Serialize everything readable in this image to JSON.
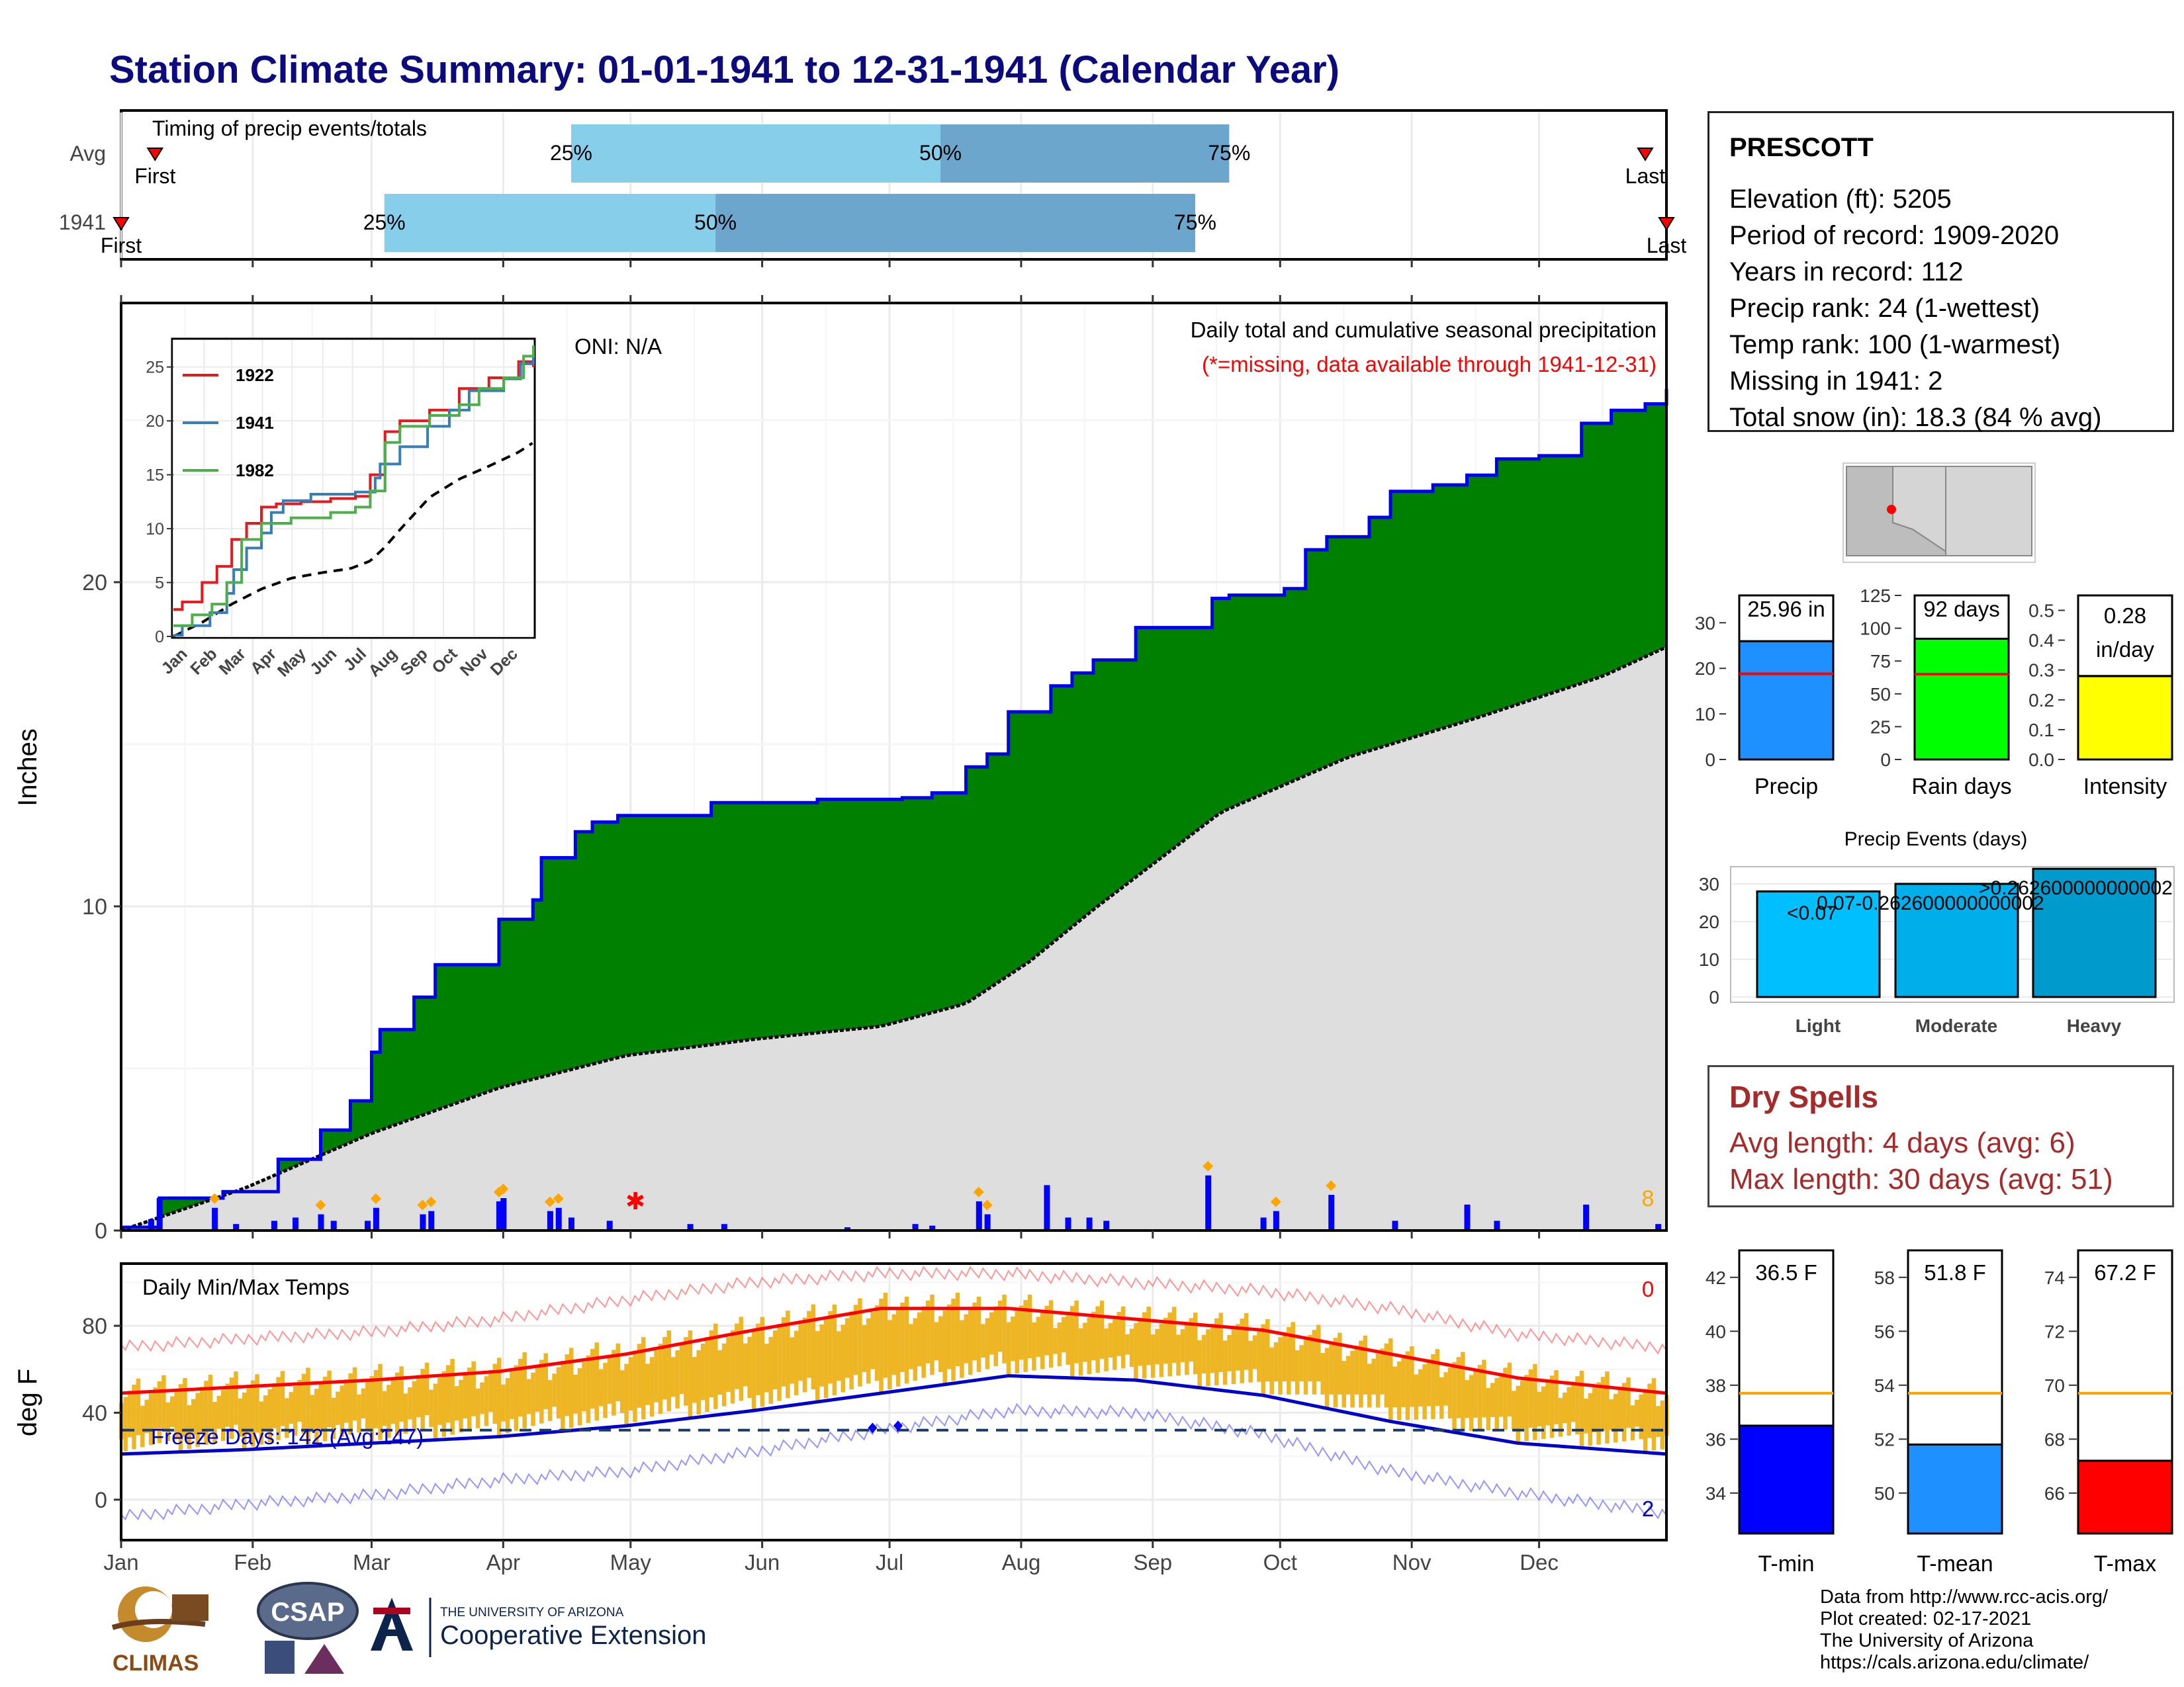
{
  "title": "Station Climate Summary: 01-01-1941 to 12-31-1941 (Calendar Year)",
  "colors": {
    "title": "#0b0b7e",
    "precip_fill": "#008000",
    "normal_fill": "#dedede",
    "tmin": "#0000ff",
    "tmax": "#ff0000",
    "tmean": "#1e90ff",
    "temp_bar": "#eeb524",
    "dry": "#a52a2a"
  },
  "months": [
    "Jan",
    "Feb",
    "Mar",
    "Apr",
    "May",
    "Jun",
    "Jul",
    "Aug",
    "Sep",
    "Oct",
    "Nov",
    "Dec"
  ],
  "timing": {
    "title": "Timing of precip events/totals",
    "rows": [
      {
        "label": "Avg",
        "q25": "25%",
        "q50": "50%",
        "q75": "75%",
        "first": "First",
        "last": "Last",
        "first_doy": 9,
        "last_doy": 360,
        "q25_doy": 107,
        "q50_doy": 194,
        "q75_doy": 262
      },
      {
        "label": "1941",
        "q25": "25%",
        "q50": "50%",
        "q75": "75%",
        "first": "First",
        "last": "Last",
        "first_doy": 1,
        "last_doy": 365,
        "q25_doy": 63,
        "q50_doy": 141,
        "q75_doy": 254
      }
    ]
  },
  "main": {
    "ylabel": "Inches",
    "oni": "ONI: N/A",
    "caption": "Daily total and cumulative seasonal precipitation",
    "missing_note": "(*=missing, data available through 1941-12-31)",
    "corner_value": "8",
    "yticks": [
      "0",
      "10",
      "20"
    ]
  },
  "inset": {
    "yticks": [
      "0",
      "5",
      "10",
      "15",
      "20",
      "25"
    ],
    "legend": [
      {
        "name": "1922",
        "color": "#e41a1c"
      },
      {
        "name": "1941",
        "color": "#377eb8"
      },
      {
        "name": "1982",
        "color": "#4daf4a"
      }
    ]
  },
  "temps": {
    "title": "Daily Min/Max Temps",
    "ylabel": "deg F",
    "freeze": "Freeze Days: 142 (Avg:147)",
    "top_count": "0",
    "bottom_count": "2",
    "yticks": [
      "0",
      "40",
      "80"
    ]
  },
  "station": {
    "name": "PRESCOTT",
    "lines": [
      "Elevation (ft): 5205",
      "Period of record: 1909-2020",
      "Years in record: 112",
      "Precip rank: 24 (1-wettest)",
      "Temp rank: 100 (1-warmest)",
      "Missing in 1941: 2",
      "Total snow (in): 18.3 (84 % avg)"
    ]
  },
  "mini_bars": [
    {
      "label": "Precip",
      "value_text": "25.96 in",
      "value": 25.96,
      "avg": 18.8,
      "ymax": 36,
      "ticks": [
        "0",
        "10",
        "20",
        "30"
      ],
      "tickvals": [
        0,
        10,
        20,
        30
      ],
      "color": "#1e90ff"
    },
    {
      "label": "Rain days",
      "value_text": "92 days",
      "value": 92,
      "avg": 65,
      "ymax": 125,
      "ticks": [
        "0",
        "25",
        "50",
        "75",
        "100",
        "125"
      ],
      "tickvals": [
        0,
        25,
        50,
        75,
        100,
        125
      ],
      "color": "#00ff00"
    },
    {
      "label": "Intensity",
      "value_text": "0.28 in/day",
      "value": 0.28,
      "avg": 0.28,
      "ymax": 0.55,
      "ticks": [
        "0.0",
        "0.1",
        "0.2",
        "0.3",
        "0.4",
        "0.5"
      ],
      "tickvals": [
        0,
        0.1,
        0.2,
        0.3,
        0.4,
        0.5
      ],
      "color": "#ffff00"
    }
  ],
  "events": {
    "title": "Precip Events (days)",
    "bars": [
      {
        "label": "Light",
        "value": 28,
        "tag": "<0.07",
        "color": "#00bfff"
      },
      {
        "label": "Moderate",
        "value": 30,
        "tag": "0.07-0.262600000000002",
        "color": "#00aeea"
      },
      {
        "label": "Heavy",
        "value": 34,
        "tag": ">0.262600000000002",
        "color": "#009acd"
      }
    ],
    "ticks": [
      "0",
      "10",
      "20",
      "30"
    ]
  },
  "dry": {
    "title": "Dry Spells",
    "avg": "Avg length: 4 days (avg: 6)",
    "max": "Max length: 30 days (avg: 51)"
  },
  "temp_bars": [
    {
      "label": "T-min",
      "value_text": "36.5 F",
      "value": 36.5,
      "avg": 37.7,
      "ymin": 32.5,
      "ymax": 43,
      "ticks": [
        "34",
        "36",
        "38",
        "40",
        "42"
      ],
      "tickvals": [
        34,
        36,
        38,
        40,
        42
      ],
      "color": "#0000ff"
    },
    {
      "label": "T-mean",
      "value_text": "51.8 F",
      "value": 51.8,
      "avg": 53.7,
      "ymin": 48.5,
      "ymax": 59,
      "ticks": [
        "50",
        "52",
        "54",
        "56",
        "58"
      ],
      "tickvals": [
        50,
        52,
        54,
        56,
        58
      ],
      "color": "#1e90ff"
    },
    {
      "label": "T-max",
      "value_text": "67.2 F",
      "value": 67.2,
      "avg": 69.7,
      "ymin": 64.5,
      "ymax": 75,
      "ticks": [
        "66",
        "68",
        "70",
        "72",
        "74"
      ],
      "tickvals": [
        66,
        68,
        70,
        72,
        74
      ],
      "color": "#ff0000"
    }
  ],
  "credits": [
    "Data from http://www.rcc-acis.org/",
    "Plot created: 02-17-2021",
    "The University of Arizona",
    "https://cals.arizona.edu/climate/"
  ],
  "logos": {
    "climas": "CLIMAS",
    "csap": "CSAP",
    "ua_small": "THE UNIVERSITY OF ARIZONA",
    "ua_big": "Cooperative Extension"
  },
  "chart_data": {
    "type": "area",
    "title": "Station Climate Summary: 01-01-1941 to 12-31-1941 (Calendar Year)",
    "ylabel": "Inches",
    "ylim": [
      0,
      28
    ],
    "xlim": [
      1,
      365
    ],
    "series": [
      {
        "name": "1941",
        "x": [
          1,
          10,
          25,
          38,
          48,
          55,
          60,
          62,
          70,
          75,
          82,
          90,
          98,
          100,
          108,
          112,
          118,
          125,
          130,
          140,
          150,
          165,
          175,
          185,
          192,
          200,
          205,
          210,
          220,
          225,
          230,
          240,
          250,
          258,
          262,
          270,
          275,
          280,
          285,
          295,
          300,
          310,
          318,
          325,
          335,
          345,
          352,
          360,
          365
        ],
        "values": [
          0.1,
          1.0,
          1.2,
          2.2,
          3.1,
          4.0,
          5.5,
          6.2,
          7.2,
          8.2,
          8.2,
          9.6,
          10.2,
          11.5,
          12.3,
          12.6,
          12.8,
          12.8,
          12.8,
          13.2,
          13.2,
          13.3,
          13.3,
          13.35,
          13.5,
          14.3,
          14.7,
          16.0,
          16.8,
          17.2,
          17.6,
          18.6,
          18.6,
          19.5,
          19.6,
          19.6,
          19.8,
          21.0,
          21.4,
          22.0,
          22.8,
          23.0,
          23.3,
          23.8,
          23.9,
          24.9,
          25.3,
          25.5,
          25.96
        ]
      },
      {
        "name": "Avg",
        "x": [
          1,
          30,
          60,
          90,
          120,
          150,
          180,
          200,
          215,
          230,
          260,
          290,
          320,
          350,
          365
        ],
        "values": [
          0,
          1.3,
          3.0,
          4.4,
          5.4,
          5.9,
          6.3,
          7.0,
          8.3,
          9.9,
          12.9,
          14.6,
          15.8,
          17.1,
          18.0
        ]
      }
    ],
    "daily_precip": [
      {
        "x": 8,
        "y": 0.35
      },
      {
        "x": 10,
        "y": 1.0
      },
      {
        "x": 23,
        "y": 0.7
      },
      {
        "x": 28,
        "y": 0.2
      },
      {
        "x": 37,
        "y": 0.3
      },
      {
        "x": 42,
        "y": 0.4
      },
      {
        "x": 48,
        "y": 0.5
      },
      {
        "x": 51,
        "y": 0.3
      },
      {
        "x": 59,
        "y": 0.3
      },
      {
        "x": 61,
        "y": 0.7
      },
      {
        "x": 72,
        "y": 0.5
      },
      {
        "x": 74,
        "y": 0.6
      },
      {
        "x": 90,
        "y": 0.9
      },
      {
        "x": 91,
        "y": 1.0
      },
      {
        "x": 102,
        "y": 0.6
      },
      {
        "x": 104,
        "y": 0.7
      },
      {
        "x": 107,
        "y": 0.4
      },
      {
        "x": 116,
        "y": 0.3
      },
      {
        "x": 135,
        "y": 0.2
      },
      {
        "x": 143,
        "y": 0.2
      },
      {
        "x": 172,
        "y": 0.1
      },
      {
        "x": 188,
        "y": 0.2
      },
      {
        "x": 192,
        "y": 0.15
      },
      {
        "x": 203,
        "y": 0.9
      },
      {
        "x": 205,
        "y": 0.5
      },
      {
        "x": 219,
        "y": 1.4
      },
      {
        "x": 224,
        "y": 0.4
      },
      {
        "x": 229,
        "y": 0.4
      },
      {
        "x": 233,
        "y": 0.3
      },
      {
        "x": 257,
        "y": 1.7
      },
      {
        "x": 270,
        "y": 0.4
      },
      {
        "x": 273,
        "y": 0.6
      },
      {
        "x": 286,
        "y": 1.1
      },
      {
        "x": 301,
        "y": 0.3
      },
      {
        "x": 318,
        "y": 0.8
      },
      {
        "x": 325,
        "y": 0.3
      },
      {
        "x": 346,
        "y": 0.8
      },
      {
        "x": 363,
        "y": 0.2
      }
    ],
    "temps": {
      "ylim": [
        -18,
        108
      ],
      "avg_max": {
        "x": [
          1,
          30,
          60,
          90,
          120,
          150,
          180,
          210,
          240,
          270,
          300,
          330,
          365
        ],
        "values": [
          49,
          52,
          55,
          59,
          67,
          78,
          88,
          88,
          83,
          78,
          67,
          56,
          49
        ]
      },
      "avg_min": {
        "x": [
          1,
          30,
          60,
          90,
          120,
          150,
          180,
          210,
          240,
          270,
          300,
          330,
          365
        ],
        "values": [
          21,
          23,
          26,
          29,
          34,
          41,
          49,
          57,
          55,
          48,
          36,
          26,
          21
        ]
      },
      "record_max": {
        "x": [
          1,
          30,
          60,
          90,
          120,
          150,
          180,
          210,
          240,
          270,
          300,
          330,
          365
        ],
        "values": [
          70,
          74,
          77,
          83,
          92,
          100,
          104,
          104,
          100,
          96,
          88,
          76,
          70
        ]
      },
      "record_min": {
        "x": [
          1,
          30,
          60,
          90,
          120,
          150,
          180,
          210,
          240,
          270,
          300,
          330,
          365
        ],
        "values": [
          -8,
          -2,
          2,
          9,
          13,
          22,
          32,
          41,
          40,
          30,
          13,
          3,
          -6
        ]
      },
      "freeze_line": 32
    }
  }
}
